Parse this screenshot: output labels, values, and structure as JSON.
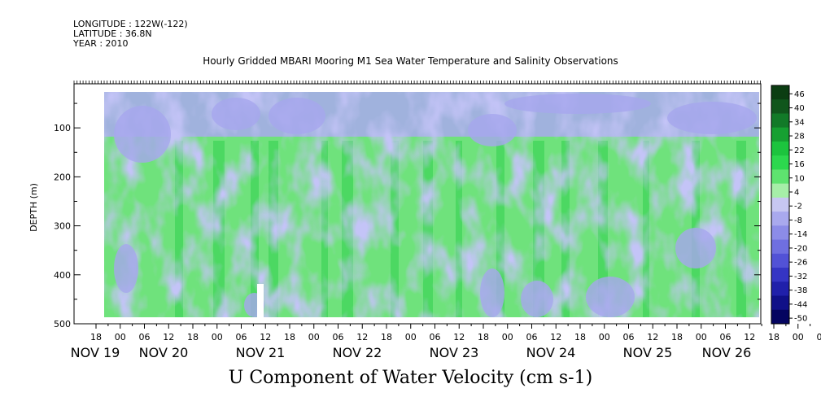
{
  "header": {
    "longitude": "LONGITUDE : 122W(-122)",
    "latitude": "LATITUDE : 36.8N",
    "year": "YEAR : 2010"
  },
  "chart_data": {
    "type": "heatmap",
    "title": "Hourly Gridded MBARI Mooring M1 Sea Water Temperature and Salinity Observations",
    "xlabel": "U Component of Water Velocity (cm s-1)",
    "ylabel": "DEPTH (m)",
    "y_ticks": [
      "100",
      "200",
      "300",
      "400",
      "500"
    ],
    "ylim": [
      500,
      10
    ],
    "x_hour_ticks": [
      "18",
      "00",
      "06",
      "12",
      "18",
      "00",
      "06",
      "12",
      "18",
      "00",
      "06",
      "12",
      "18",
      "00",
      "06",
      "12",
      "18",
      "00",
      "06",
      "12",
      "18",
      "00",
      "06",
      "12",
      "18",
      "00",
      "06",
      "12",
      "18",
      "00",
      "06",
      "12"
    ],
    "x_day_labels": [
      "NOV 19",
      "NOV 20",
      "NOV 21",
      "NOV 22",
      "NOV 23",
      "NOV 24",
      "NOV 25",
      "NOV 26"
    ],
    "colorbar_levels": [
      "46",
      "40",
      "34",
      "28",
      "22",
      "16",
      "10",
      "4",
      "-2",
      "-8",
      "-14",
      "-20",
      "-26",
      "-32",
      "-38",
      "-44",
      "-50"
    ],
    "colorbar_colors": [
      "#0b3d12",
      "#10561c",
      "#127a28",
      "#16a032",
      "#1cc43e",
      "#2cd84e",
      "#5ee36f",
      "#a6eea8",
      "#c7c7f2",
      "#a9a9ee",
      "#8c8ce8",
      "#6f6fe0",
      "#5252d6",
      "#3535c4",
      "#2020aa",
      "#101088",
      "#050560"
    ]
  }
}
